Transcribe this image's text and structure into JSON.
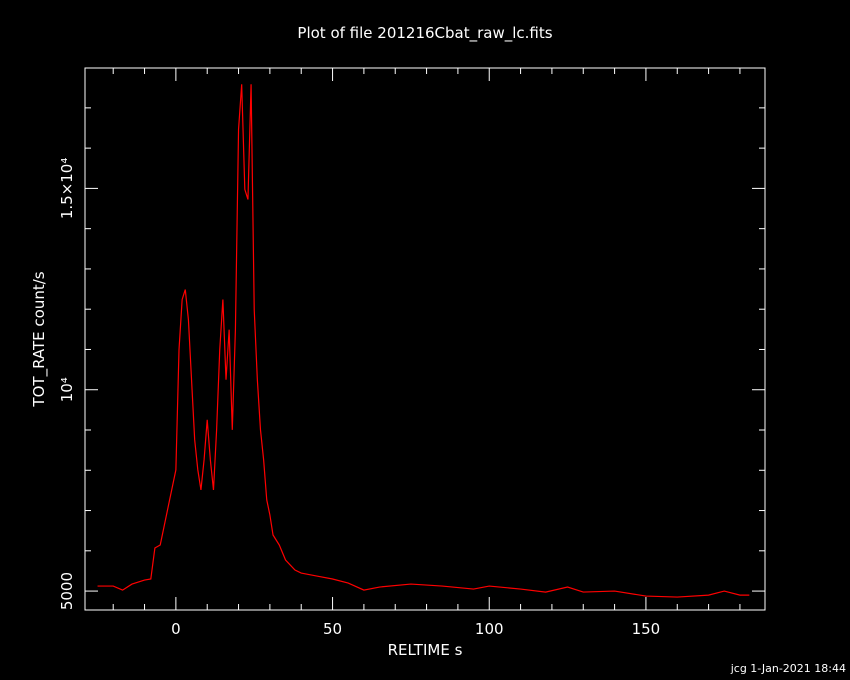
{
  "chart_data": {
    "type": "line",
    "title": "Plot of file 201216Cbat_raw_lc.fits",
    "x_label": "RELTIME  s",
    "y_label": "TOT_RATE  count/s",
    "footer": "jcg  1-Jan-2021 18:44",
    "xlim": [
      -29,
      188
    ],
    "ylim": [
      4530,
      17990
    ],
    "xticks": [
      0,
      50,
      100,
      150
    ],
    "yticks": [
      {
        "value": 5000,
        "label": "5000"
      },
      {
        "value": 10000,
        "label": "10⁴"
      },
      {
        "value": 15000,
        "label": "1.5×10⁴"
      }
    ],
    "x_minor_ticks": [
      -20,
      -10,
      10,
      20,
      30,
      40,
      60,
      70,
      80,
      90,
      110,
      120,
      130,
      140,
      160,
      170,
      180
    ],
    "y_minor_ticks": [
      6000,
      7000,
      8000,
      9000,
      11000,
      12000,
      13000,
      14000,
      16000,
      17000
    ],
    "x": [
      -25,
      -20,
      -17,
      -14,
      -10,
      -8,
      -6.7,
      -5,
      -4,
      -2,
      0,
      1,
      2,
      3,
      4,
      5,
      6,
      7,
      8,
      9,
      10,
      11,
      12,
      13,
      14,
      15,
      16,
      17,
      18,
      19,
      20,
      21,
      22,
      23,
      24,
      25,
      26,
      27,
      28,
      29,
      30,
      31,
      33,
      35,
      38,
      40,
      45,
      50,
      55,
      60,
      65,
      75,
      85,
      95,
      100,
      110,
      118,
      125,
      130,
      140,
      150,
      160,
      170,
      175,
      180,
      183
    ],
    "series": [
      {
        "name": "TOT_RATE",
        "color": "#ff0000",
        "values": [
          5124,
          5124,
          5025,
          5174,
          5274,
          5300,
          6070,
          6144,
          6517,
          7264,
          8010,
          10995,
          12239,
          12488,
          11741,
          10249,
          8756,
          8010,
          7512,
          8259,
          9254,
          8259,
          7512,
          9005,
          10995,
          12239,
          10249,
          11493,
          9005,
          11493,
          16468,
          17587,
          14975,
          14726,
          17587,
          11990,
          10249,
          9005,
          8259,
          7264,
          6891,
          6393,
          6144,
          5771,
          5522,
          5448,
          5373,
          5300,
          5199,
          5025,
          5100,
          5174,
          5124,
          5050,
          5124,
          5050,
          4975,
          5100,
          4975,
          5000,
          4876,
          4851,
          4900,
          5000,
          4900,
          4900
        ]
      }
    ]
  }
}
